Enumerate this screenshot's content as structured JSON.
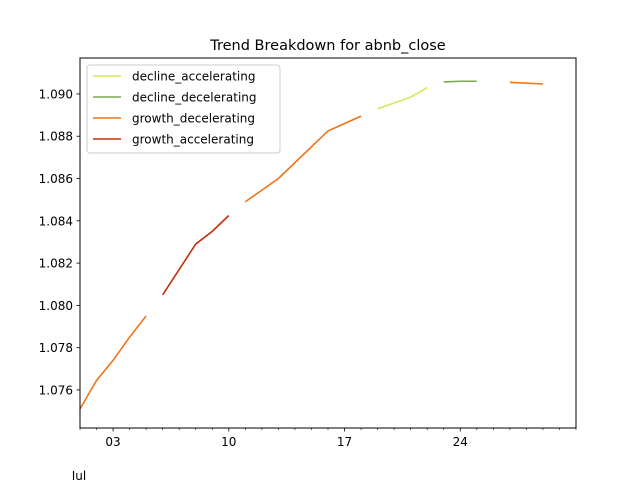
{
  "chart_data": {
    "type": "line",
    "title": "Trend Breakdown for abnb_close",
    "xlabel": "",
    "ylabel": "",
    "x_range": [
      "2024-07-01",
      "2024-07-31"
    ],
    "x_ticks": [
      {
        "date": "2024-07-03",
        "label": "03"
      },
      {
        "date": "2024-07-10",
        "label": "10"
      },
      {
        "date": "2024-07-17",
        "label": "17"
      },
      {
        "date": "2024-07-24",
        "label": "24"
      }
    ],
    "x_minor_ticks": [
      "2024-07-01",
      "2024-07-02",
      "2024-07-04",
      "2024-07-05",
      "2024-07-06",
      "2024-07-07",
      "2024-07-08",
      "2024-07-09",
      "2024-07-11",
      "2024-07-12",
      "2024-07-13",
      "2024-07-14",
      "2024-07-15",
      "2024-07-16",
      "2024-07-18",
      "2024-07-19",
      "2024-07-20",
      "2024-07-21",
      "2024-07-22",
      "2024-07-23",
      "2024-07-25",
      "2024-07-26",
      "2024-07-27",
      "2024-07-28",
      "2024-07-29",
      "2024-07-30",
      "2024-07-31"
    ],
    "x_secondary_label": "Jul",
    "ylim": [
      1.0742,
      1.0917
    ],
    "y_ticks": [
      1.076,
      1.078,
      1.08,
      1.082,
      1.084,
      1.086,
      1.088,
      1.09
    ],
    "y_tick_labels": [
      "1.076",
      "1.078",
      "1.080",
      "1.082",
      "1.084",
      "1.086",
      "1.088",
      "1.090"
    ],
    "legend_position": "top-left",
    "grid": false,
    "series": [
      {
        "name": "decline_accelerating",
        "color": "#d4e85c",
        "segments": [
          [
            [
              "2024-07-19",
              1.0893
            ],
            [
              "2024-07-21",
              1.08985
            ],
            [
              "2024-07-22",
              1.0903
            ]
          ]
        ]
      },
      {
        "name": "decline_decelerating",
        "color": "#7ba952",
        "segments": [
          [
            [
              "2024-07-23",
              1.09057
            ],
            [
              "2024-07-24",
              1.0906
            ],
            [
              "2024-07-25",
              1.0906
            ]
          ]
        ]
      },
      {
        "name": "growth_decelerating",
        "color": "#f07318",
        "segments": [
          [
            [
              "2024-07-01",
              1.0751
            ],
            [
              "2024-07-02",
              1.07645
            ],
            [
              "2024-07-03",
              1.0774
            ],
            [
              "2024-07-04",
              1.0785
            ],
            [
              "2024-07-05",
              1.0795
            ]
          ],
          [
            [
              "2024-07-11",
              1.0849
            ],
            [
              "2024-07-13",
              1.086
            ],
            [
              "2024-07-16",
              1.08825
            ],
            [
              "2024-07-17",
              1.0886
            ],
            [
              "2024-07-18",
              1.08895
            ]
          ],
          [
            [
              "2024-07-27",
              1.09055
            ],
            [
              "2024-07-29",
              1.09047
            ]
          ]
        ]
      },
      {
        "name": "growth_accelerating",
        "color": "#c0300a",
        "segments": [
          [
            [
              "2024-07-06",
              1.0805
            ],
            [
              "2024-07-08",
              1.0829
            ],
            [
              "2024-07-09",
              1.0835
            ],
            [
              "2024-07-10",
              1.08425
            ]
          ]
        ]
      }
    ]
  }
}
